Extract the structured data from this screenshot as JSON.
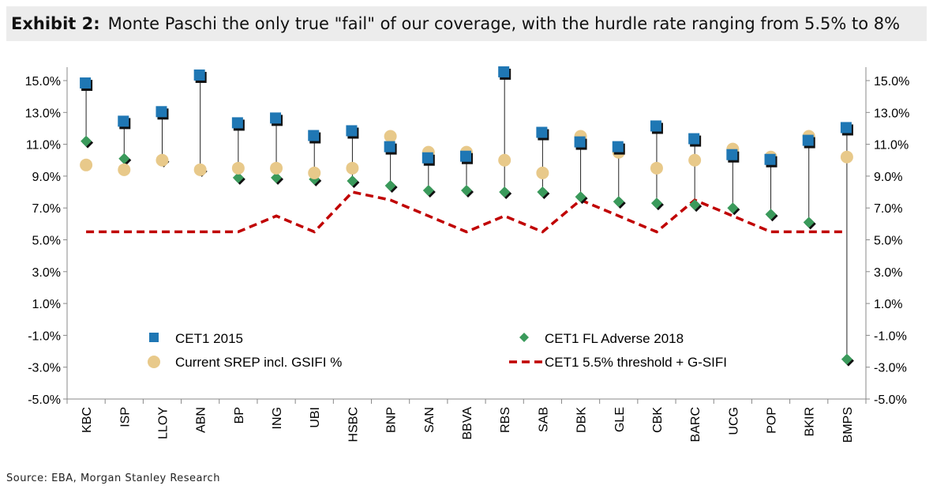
{
  "title": {
    "label": "Exhibit 2:",
    "text": "Monte Paschi the only true \"fail\" of our coverage, with the hurdle rate ranging from 5.5% to 8%"
  },
  "source": "Source: EBA, Morgan Stanley Research",
  "chart_data": {
    "type": "scatter",
    "categories": [
      "KBC",
      "ISP",
      "LLOY",
      "ABN",
      "BP",
      "ING",
      "UBI",
      "HSBC",
      "BNP",
      "SAN",
      "BBVA",
      "RBS",
      "SAB",
      "DBK",
      "GLE",
      "CBK",
      "BARC",
      "UCG",
      "POP",
      "BKIR",
      "BMPS"
    ],
    "series": [
      {
        "name": "CET1 2015",
        "marker": "square",
        "color": "#1f77b4",
        "values": [
          14.8,
          12.4,
          13.0,
          15.3,
          12.3,
          12.6,
          11.5,
          11.8,
          10.8,
          10.1,
          10.2,
          15.5,
          11.7,
          11.1,
          10.8,
          12.1,
          11.3,
          10.3,
          10.0,
          11.2,
          12.0
        ]
      },
      {
        "name": "CET1 FL Adverse 2018",
        "marker": "diamond",
        "color": "#3a9a5b",
        "values": [
          11.2,
          10.1,
          10.0,
          9.4,
          8.9,
          8.9,
          8.8,
          8.7,
          8.4,
          8.1,
          8.1,
          8.0,
          8.0,
          7.7,
          7.4,
          7.3,
          7.2,
          7.0,
          6.6,
          6.1,
          -2.5
        ]
      },
      {
        "name": "Current SREP incl. GSIFI %",
        "marker": "circle",
        "color": "#e8c98a",
        "values": [
          9.7,
          9.4,
          10.0,
          9.4,
          9.5,
          9.5,
          9.2,
          9.5,
          11.5,
          10.5,
          10.5,
          10.0,
          9.2,
          11.5,
          10.5,
          9.5,
          10.0,
          10.7,
          10.2,
          11.5,
          10.2
        ]
      },
      {
        "name": "CET1 5.5% threshold + G-SIFI",
        "marker": "dashed-line",
        "color": "#c00000",
        "values": [
          5.5,
          5.5,
          5.5,
          5.5,
          5.5,
          6.5,
          5.5,
          8.0,
          7.5,
          6.5,
          5.5,
          6.5,
          5.5,
          7.5,
          6.5,
          5.5,
          7.5,
          6.5,
          5.5,
          5.5,
          5.5
        ]
      }
    ],
    "ylim": [
      -5,
      16
    ],
    "yticks": [
      "-5.0%",
      "-3.0%",
      "-1.0%",
      "1.0%",
      "3.0%",
      "5.0%",
      "7.0%",
      "9.0%",
      "11.0%",
      "13.0%",
      "15.0%"
    ],
    "ytick_values": [
      -5,
      -3,
      -1,
      1,
      3,
      5,
      7,
      9,
      11,
      13,
      15
    ],
    "legend": "inside-bottom",
    "grid": false
  }
}
